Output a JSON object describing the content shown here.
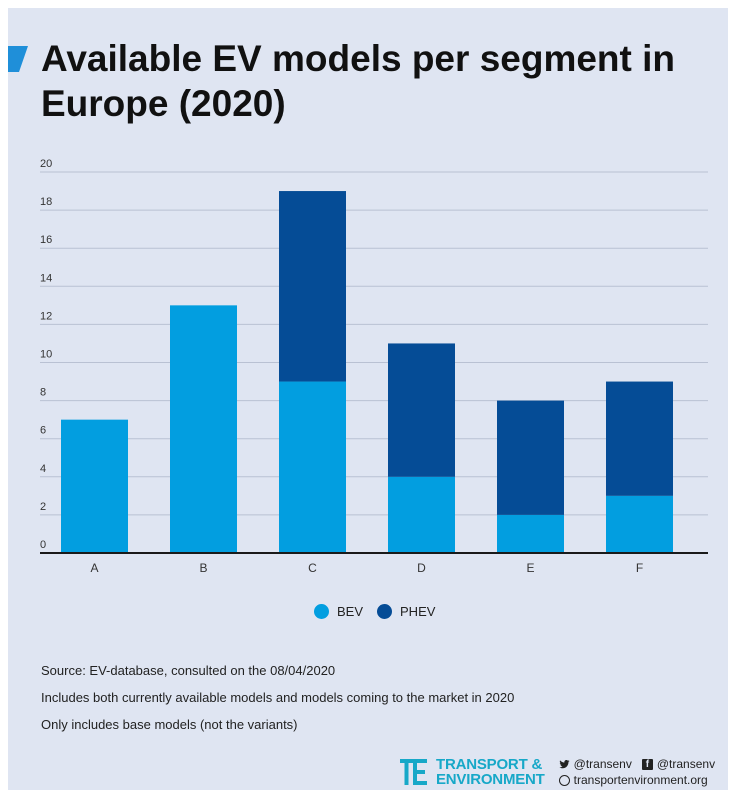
{
  "title": "Available EV models per segment in Europe (2020)",
  "chart_data": {
    "type": "bar",
    "stacked": true,
    "categories": [
      "A",
      "B",
      "C",
      "D",
      "E",
      "F"
    ],
    "series": [
      {
        "name": "BEV",
        "color": "#029ee0",
        "values": [
          7,
          13,
          9,
          4,
          2,
          3
        ]
      },
      {
        "name": "PHEV",
        "color": "#054c96",
        "values": [
          0,
          0,
          10,
          7,
          6,
          6
        ]
      }
    ],
    "ylim": [
      0,
      20
    ],
    "yticks": [
      "0",
      "2",
      "4",
      "6",
      "8",
      "10",
      "12",
      "14",
      "16",
      "18",
      "20"
    ],
    "grid": true,
    "legend": "bottom"
  },
  "notes": {
    "source": "Source:  EV-database,  consulted on the 08/04/2020",
    "line1": "Includes both currently available models and models coming to the market in 2020",
    "line2": "Only includes base models (not the variants)"
  },
  "footer": {
    "brand_line1": "TRANSPORT &",
    "brand_line2": "ENVIRONMENT",
    "twitter": "@transenv",
    "facebook": "@transenv",
    "website": "transportenvironment.org",
    "brand_color": "#17a8c8"
  }
}
